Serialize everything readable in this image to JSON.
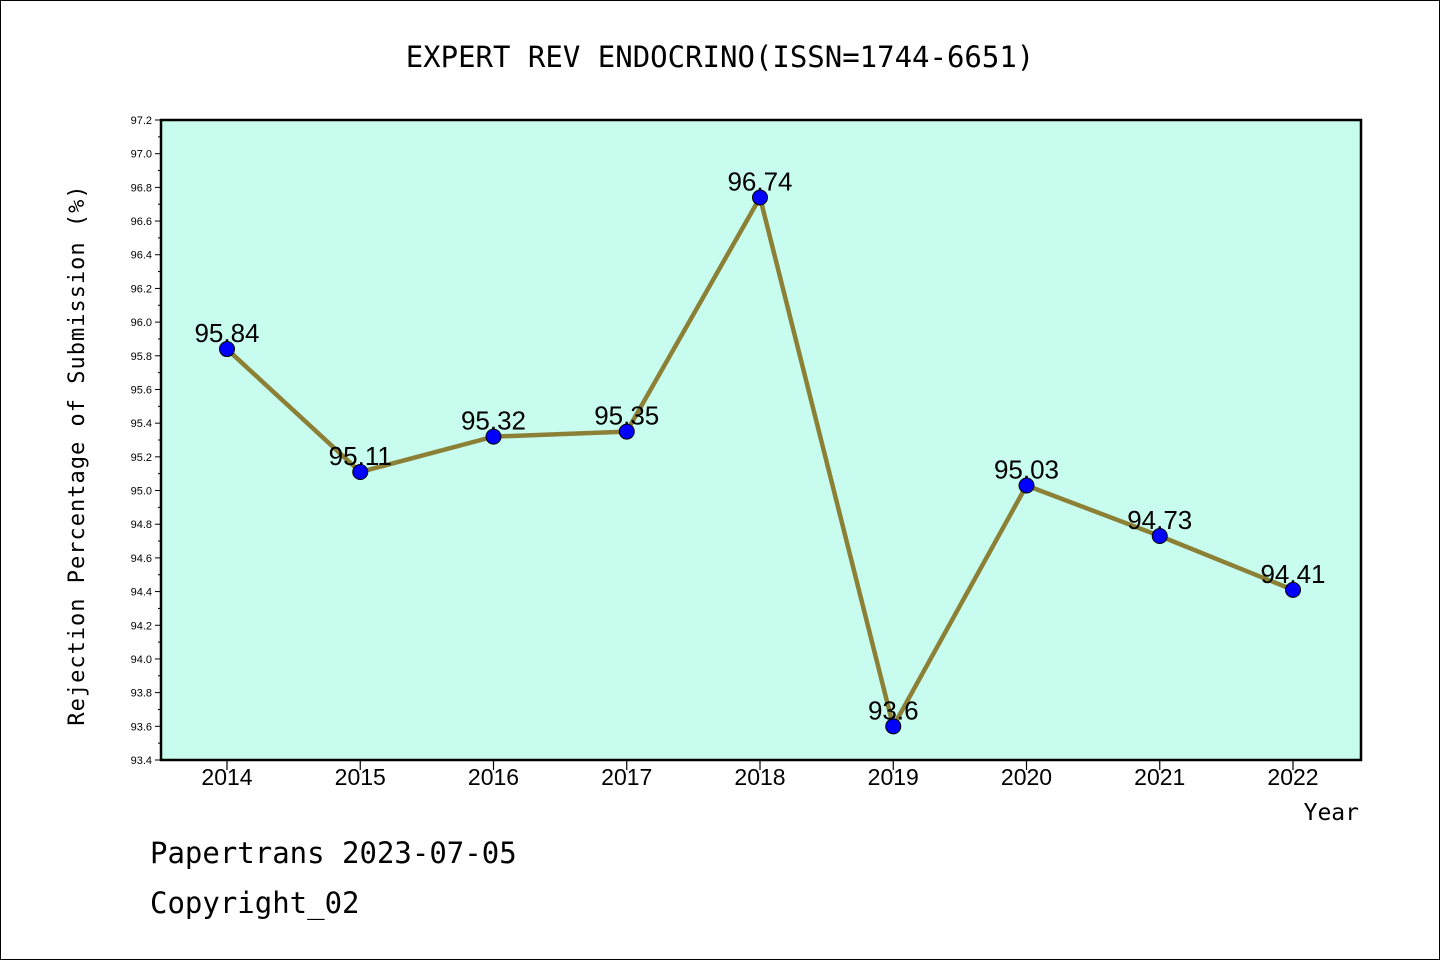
{
  "chart_data": {
    "type": "line",
    "title": "EXPERT REV ENDOCRINO(ISSN=1744-6651)",
    "xlabel": "Year",
    "ylabel": "Rejection Percentage of Submission (%)",
    "categories": [
      "2014",
      "2015",
      "2016",
      "2017",
      "2018",
      "2019",
      "2020",
      "2021",
      "2022"
    ],
    "series": [
      {
        "values": [
          95.84,
          95.11,
          95.32,
          95.35,
          96.74,
          93.6,
          95.03,
          94.73,
          94.41
        ],
        "labels": [
          "95.84",
          "95.11",
          "95.32",
          "95.35",
          "96.74",
          "93.6",
          "95.03",
          "94.73",
          "94.41"
        ]
      }
    ],
    "ylim": [
      93.4,
      97.2
    ],
    "yticks": [
      "93.4",
      "93.6",
      "93.8",
      "94.0",
      "94.2",
      "94.4",
      "94.6",
      "94.8",
      "95.0",
      "95.2",
      "95.4",
      "95.6",
      "95.8",
      "96.0",
      "96.2",
      "96.4",
      "96.6",
      "96.8",
      "97.0",
      "97.2"
    ],
    "grid": false,
    "colors": {
      "plot_background": "#c8fcee",
      "line": "#8b8035",
      "marker": "#0000ff"
    }
  },
  "footer": {
    "line1": "Papertrans 2023-07-05",
    "line2": "Copyright_02"
  }
}
